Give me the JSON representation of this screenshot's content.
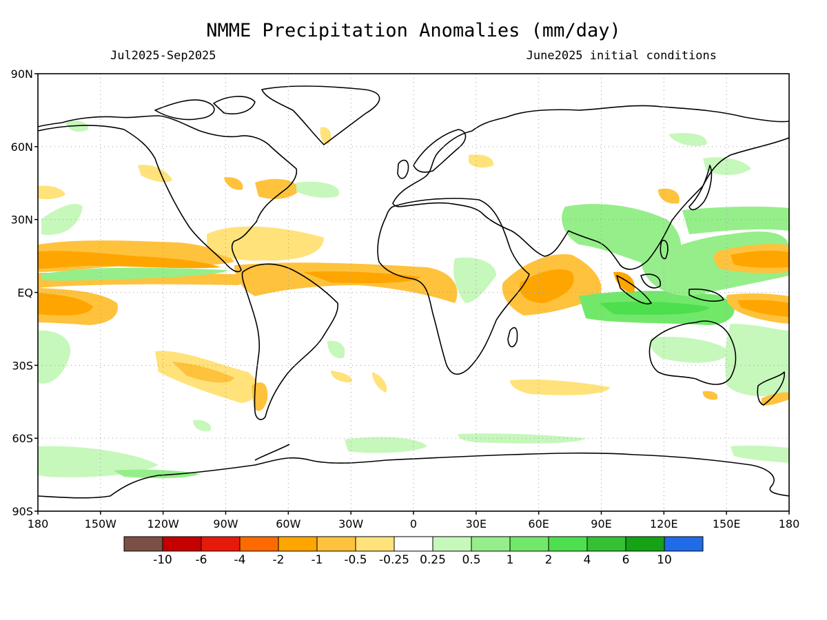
{
  "title": "NMME Precipitation Anomalies (mm/day)",
  "period": "Jul2025-Sep2025",
  "init": "June2025 initial conditions",
  "lat_ticks": [
    "90N",
    "60N",
    "30N",
    "EQ",
    "30S",
    "60S",
    "90S"
  ],
  "lon_ticks": [
    "180",
    "150W",
    "120W",
    "90W",
    "60W",
    "30W",
    "0",
    "30E",
    "60E",
    "90E",
    "120E",
    "150E",
    "180"
  ],
  "colorbar": {
    "colors": [
      "#7b4f45",
      "#c40000",
      "#e61a0a",
      "#ff6a00",
      "#ffa500",
      "#ffc23d",
      "#ffe27a",
      "#ffffff",
      "#c6f7bb",
      "#95ee8a",
      "#72e86a",
      "#4ddf4d",
      "#34c234",
      "#15a315",
      "#1f6be8"
    ],
    "labels": [
      "-10",
      "-6",
      "-4",
      "-2",
      "-1",
      "-0.5",
      "-0.25",
      "0.25",
      "0.5",
      "1",
      "2",
      "4",
      "6",
      "10"
    ]
  },
  "map_data": {
    "projection": "cylindrical equidistant",
    "lon_range": [
      -180,
      180
    ],
    "lat_range": [
      -90,
      90
    ],
    "grid": true
  }
}
